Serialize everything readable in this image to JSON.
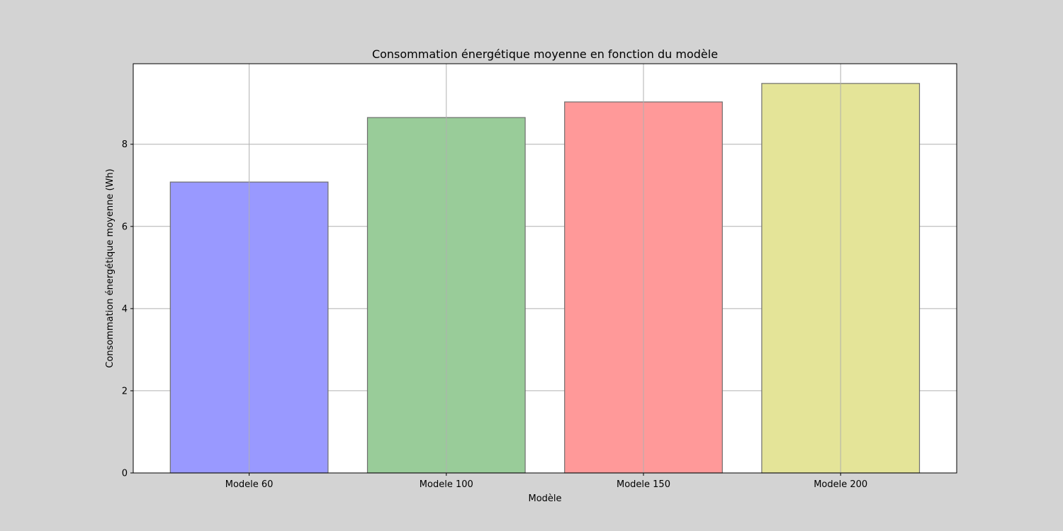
{
  "chart_data": {
    "type": "bar",
    "title": "Consommation énergétique moyenne en fonction du modèle",
    "xlabel": "Modèle",
    "ylabel": "Consommation énergétique moyenne (Wh)",
    "categories": [
      "Modele 60",
      "Modele 100",
      "Modele 150",
      "Modele 200"
    ],
    "values": [
      7.08,
      8.65,
      9.03,
      9.48
    ],
    "colors": [
      "#9999ff",
      "#99cc99",
      "#ff9999",
      "#e4e498"
    ],
    "edge_color": "#6e6e6e",
    "ylim": [
      0,
      9.96
    ],
    "yticks": [
      0,
      2,
      4,
      6,
      8
    ],
    "grid": true,
    "legend": "none"
  }
}
